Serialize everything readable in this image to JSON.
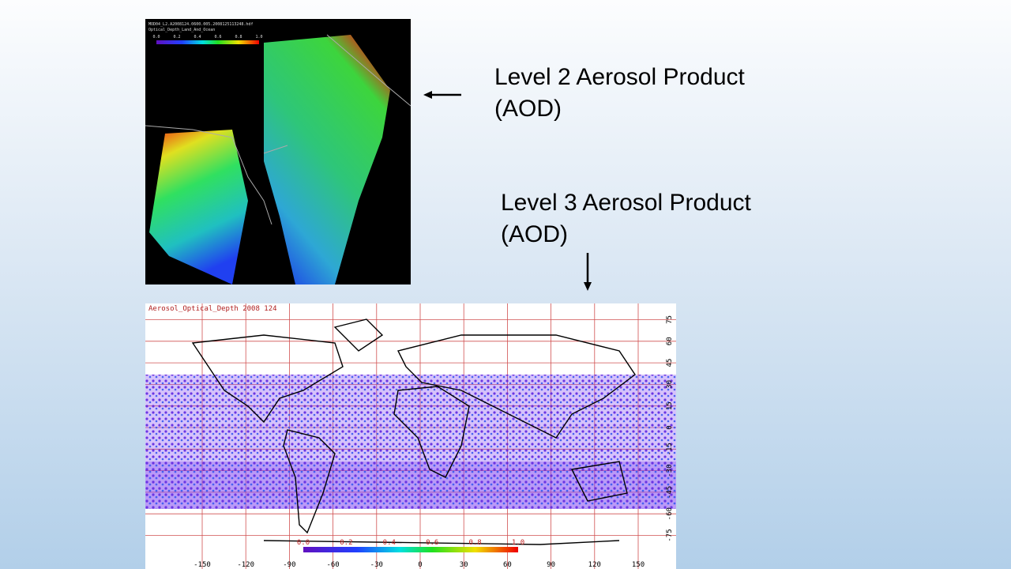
{
  "slide": {
    "level2_caption": [
      "Level 2 Aerosol Product",
      "(AOD)"
    ],
    "level3_caption": [
      "Level 3 Aerosol Product",
      "(AOD)"
    ]
  },
  "level2_image": {
    "header": [
      "MOD04_L2.A2008124.0600.005.2008125113248.hdf",
      "Optical_Depth_Land_And_Ocean"
    ],
    "colorbar_labels": [
      "0.0",
      "0.2",
      "0.4",
      "0.6",
      "0.8",
      "1.0"
    ]
  },
  "level3_image": {
    "title": "Aerosol_Optical_Depth 2008 124",
    "colorbar_labels": [
      "0.0",
      "0.2",
      "0.4",
      "0.6",
      "0.8",
      "1.0"
    ],
    "longitude_labels": [
      -150,
      -120,
      -90,
      -60,
      -30,
      0,
      30,
      60,
      90,
      120,
      150
    ],
    "latitude_labels": [
      75,
      60,
      45,
      30,
      15,
      0,
      -15,
      -30,
      -45,
      -60,
      -75
    ]
  }
}
